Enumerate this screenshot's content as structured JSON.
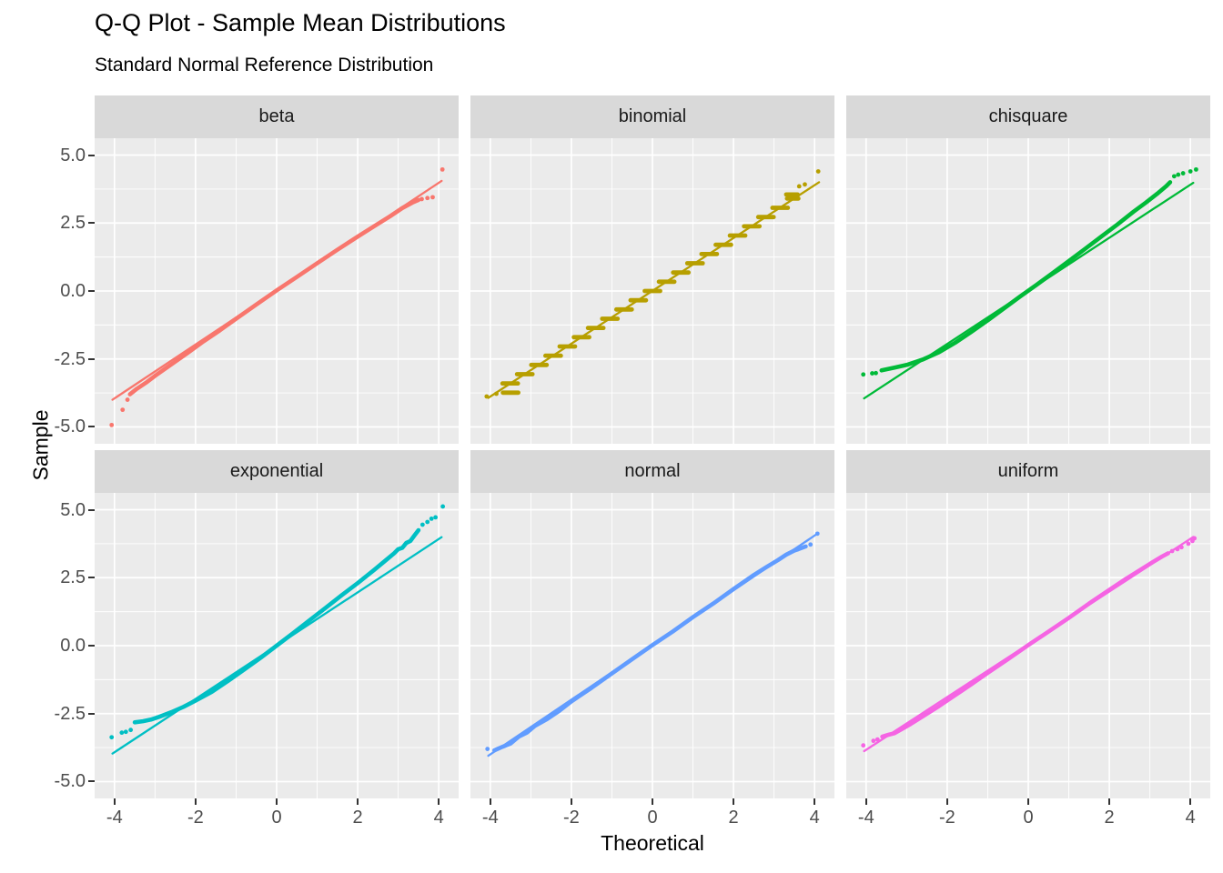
{
  "chart_data": {
    "type": "scatter",
    "title": "Q-Q Plot - Sample Mean Distributions",
    "subtitle": "Standard Normal Reference Distribution",
    "xlabel": "Theoretical",
    "ylabel": "Sample",
    "xlim": [
      -4.49,
      4.49
    ],
    "ylim": [
      -5.62,
      5.62
    ],
    "x_ticks": [
      -4,
      -2,
      0,
      2,
      4
    ],
    "x_tick_labels": [
      "-4",
      "-2",
      "0",
      "2",
      "4"
    ],
    "y_ticks": [
      5.0,
      2.5,
      0.0,
      -2.5,
      -5.0
    ],
    "y_tick_labels": [
      "5.0",
      "2.5",
      "0.0",
      "-2.5",
      "-5.0"
    ],
    "x_minor": [
      -3,
      -1,
      1,
      3
    ],
    "y_minor": [
      -3.75,
      -1.25,
      1.25,
      3.75
    ],
    "grid": true,
    "legend": "none",
    "colors": {
      "panel_bg": "#ebebeb",
      "strip_bg": "#d9d9d9",
      "grid": "#ffffff",
      "tick_text": "#4d4d4d",
      "tick_mark": "#333333"
    },
    "facets": [
      {
        "label": "beta",
        "color": "#F8766D",
        "line": [
          [
            -4.05,
            -4.0
          ],
          [
            4.07,
            4.05
          ]
        ],
        "band": [
          [
            -3.62,
            -3.8
          ],
          [
            -3.45,
            -3.6
          ],
          [
            -3.2,
            -3.35
          ],
          [
            -3.0,
            -3.12
          ],
          [
            -2.6,
            -2.7
          ],
          [
            -2.2,
            -2.28
          ],
          [
            -1.8,
            -1.85
          ],
          [
            -1.4,
            -1.45
          ],
          [
            -1.0,
            -1.02
          ],
          [
            -0.5,
            -0.5
          ],
          [
            0,
            0.02
          ],
          [
            0.5,
            0.52
          ],
          [
            1.0,
            1.02
          ],
          [
            1.5,
            1.52
          ],
          [
            2.0,
            2.0
          ],
          [
            2.4,
            2.38
          ],
          [
            2.8,
            2.75
          ],
          [
            3.1,
            3.05
          ],
          [
            3.35,
            3.25
          ],
          [
            3.5,
            3.35
          ]
        ],
        "steps": [],
        "dots": [
          [
            -4.07,
            -4.93
          ],
          [
            -3.8,
            -4.37
          ],
          [
            -3.68,
            -4.0
          ],
          [
            3.58,
            3.38
          ],
          [
            3.72,
            3.42
          ],
          [
            3.85,
            3.45
          ],
          [
            4.09,
            4.47
          ]
        ]
      },
      {
        "label": "binomial",
        "color": "#B79F00",
        "line": [
          [
            -4.05,
            -3.93
          ],
          [
            4.11,
            4.0
          ]
        ],
        "band": [],
        "steps": [
          [
            -3.74,
            -3.69,
            -3.31
          ],
          [
            -3.4,
            -3.7,
            -3.32
          ],
          [
            -3.06,
            -3.34,
            -2.96
          ],
          [
            -2.72,
            -2.99,
            -2.61
          ],
          [
            -2.38,
            -2.64,
            -2.26
          ],
          [
            -2.04,
            -2.29,
            -1.91
          ],
          [
            -1.7,
            -1.94,
            -1.56
          ],
          [
            -1.36,
            -1.59,
            -1.21
          ],
          [
            -1.02,
            -1.24,
            -0.86
          ],
          [
            -0.68,
            -0.89,
            -0.51
          ],
          [
            -0.34,
            -0.54,
            -0.16
          ],
          [
            0.0,
            -0.19,
            0.19
          ],
          [
            0.34,
            0.16,
            0.54
          ],
          [
            0.68,
            0.51,
            0.89
          ],
          [
            1.02,
            0.86,
            1.24
          ],
          [
            1.36,
            1.21,
            1.59
          ],
          [
            1.7,
            1.56,
            1.94
          ],
          [
            2.04,
            1.91,
            2.29
          ],
          [
            2.38,
            2.26,
            2.64
          ],
          [
            2.72,
            2.61,
            2.99
          ],
          [
            3.06,
            2.96,
            3.34
          ],
          [
            3.4,
            3.32,
            3.6
          ],
          [
            3.55,
            3.3,
            3.58
          ]
        ],
        "dots": [
          [
            -4.09,
            -3.88
          ],
          [
            -3.85,
            -3.78
          ],
          [
            3.62,
            3.85
          ],
          [
            3.76,
            3.92
          ],
          [
            4.09,
            4.4
          ]
        ]
      },
      {
        "label": "chisquare",
        "color": "#00BA38",
        "line": [
          [
            -4.05,
            -3.95
          ],
          [
            4.07,
            3.98
          ]
        ],
        "band": [
          [
            -3.62,
            -2.92
          ],
          [
            -3.3,
            -2.82
          ],
          [
            -3.0,
            -2.72
          ],
          [
            -2.6,
            -2.52
          ],
          [
            -2.2,
            -2.25
          ],
          [
            -1.8,
            -1.9
          ],
          [
            -1.4,
            -1.5
          ],
          [
            -1.0,
            -1.08
          ],
          [
            -0.6,
            -0.64
          ],
          [
            -0.2,
            -0.2
          ],
          [
            0.2,
            0.22
          ],
          [
            0.6,
            0.66
          ],
          [
            1.0,
            1.1
          ],
          [
            1.4,
            1.55
          ],
          [
            1.8,
            2.0
          ],
          [
            2.2,
            2.45
          ],
          [
            2.6,
            2.92
          ],
          [
            2.9,
            3.25
          ],
          [
            3.2,
            3.6
          ],
          [
            3.4,
            3.85
          ],
          [
            3.5,
            4.0
          ]
        ],
        "steps": [],
        "dots": [
          [
            -4.07,
            -3.07
          ],
          [
            -3.85,
            -3.03
          ],
          [
            -3.76,
            -3.02
          ],
          [
            3.6,
            4.22
          ],
          [
            3.7,
            4.28
          ],
          [
            3.82,
            4.33
          ],
          [
            4.0,
            4.4
          ],
          [
            4.14,
            4.47
          ]
        ]
      },
      {
        "label": "exponential",
        "color": "#00BFC4",
        "line": [
          [
            -4.05,
            -3.97
          ],
          [
            4.07,
            3.99
          ]
        ],
        "band": [
          [
            -3.5,
            -2.82
          ],
          [
            -3.3,
            -2.78
          ],
          [
            -3.1,
            -2.72
          ],
          [
            -2.9,
            -2.62
          ],
          [
            -2.6,
            -2.45
          ],
          [
            -2.3,
            -2.25
          ],
          [
            -2.0,
            -2.02
          ],
          [
            -1.6,
            -1.7
          ],
          [
            -1.2,
            -1.3
          ],
          [
            -0.8,
            -0.88
          ],
          [
            -0.4,
            -0.45
          ],
          [
            0,
            0
          ],
          [
            0.4,
            0.45
          ],
          [
            0.8,
            0.92
          ],
          [
            1.2,
            1.38
          ],
          [
            1.6,
            1.85
          ],
          [
            2.0,
            2.3
          ],
          [
            2.4,
            2.78
          ],
          [
            2.7,
            3.15
          ],
          [
            2.9,
            3.4
          ],
          [
            3.0,
            3.55
          ],
          [
            3.1,
            3.6
          ],
          [
            3.2,
            3.78
          ],
          [
            3.3,
            3.85
          ],
          [
            3.4,
            4.05
          ],
          [
            3.5,
            4.25
          ]
        ],
        "steps": [],
        "dots": [
          [
            -4.07,
            -3.37
          ],
          [
            -3.82,
            -3.2
          ],
          [
            -3.72,
            -3.17
          ],
          [
            -3.6,
            -3.1
          ],
          [
            3.6,
            4.45
          ],
          [
            3.72,
            4.55
          ],
          [
            3.82,
            4.67
          ],
          [
            3.92,
            4.72
          ],
          [
            4.1,
            5.12
          ]
        ]
      },
      {
        "label": "normal",
        "color": "#619CFF",
        "line": [
          [
            -4.05,
            -4.05
          ],
          [
            4.07,
            4.12
          ]
        ],
        "band": [
          [
            -3.9,
            -3.85
          ],
          [
            -3.7,
            -3.72
          ],
          [
            -3.5,
            -3.6
          ],
          [
            -3.3,
            -3.35
          ],
          [
            -3.1,
            -3.2
          ],
          [
            -2.9,
            -2.95
          ],
          [
            -2.6,
            -2.7
          ],
          [
            -2.3,
            -2.4
          ],
          [
            -2.0,
            -2.05
          ],
          [
            -1.5,
            -1.55
          ],
          [
            -1.0,
            -1.02
          ],
          [
            -0.5,
            -0.5
          ],
          [
            0,
            0.02
          ],
          [
            0.5,
            0.52
          ],
          [
            1.0,
            1.05
          ],
          [
            1.5,
            1.55
          ],
          [
            2.0,
            2.08
          ],
          [
            2.5,
            2.6
          ],
          [
            2.8,
            2.88
          ],
          [
            3.1,
            3.15
          ],
          [
            3.3,
            3.35
          ],
          [
            3.5,
            3.5
          ],
          [
            3.6,
            3.55
          ],
          [
            3.78,
            3.65
          ]
        ],
        "steps": [],
        "dots": [
          [
            -4.07,
            -3.8
          ],
          [
            3.9,
            3.72
          ],
          [
            4.07,
            4.12
          ]
        ]
      },
      {
        "label": "uniform",
        "color": "#F564E3",
        "line": [
          [
            -4.05,
            -3.88
          ],
          [
            4.07,
            4.0
          ]
        ],
        "band": [
          [
            -3.6,
            -3.35
          ],
          [
            -3.45,
            -3.28
          ],
          [
            -3.3,
            -3.22
          ],
          [
            -3.1,
            -3.05
          ],
          [
            -2.9,
            -2.88
          ],
          [
            -2.6,
            -2.6
          ],
          [
            -2.2,
            -2.22
          ],
          [
            -1.8,
            -1.82
          ],
          [
            -1.4,
            -1.42
          ],
          [
            -1.0,
            -1.0
          ],
          [
            -0.5,
            -0.5
          ],
          [
            0,
            0.02
          ],
          [
            0.5,
            0.52
          ],
          [
            1.0,
            1.02
          ],
          [
            1.5,
            1.55
          ],
          [
            2.0,
            2.05
          ],
          [
            2.4,
            2.45
          ],
          [
            2.8,
            2.82
          ],
          [
            3.1,
            3.1
          ],
          [
            3.3,
            3.28
          ],
          [
            3.45,
            3.4
          ]
        ],
        "steps": [],
        "dots": [
          [
            -4.07,
            -3.67
          ],
          [
            -3.82,
            -3.5
          ],
          [
            -3.72,
            -3.45
          ],
          [
            3.55,
            3.48
          ],
          [
            3.68,
            3.55
          ],
          [
            3.78,
            3.62
          ],
          [
            3.95,
            3.75
          ],
          [
            4.05,
            3.85
          ],
          [
            4.1,
            3.95
          ]
        ]
      }
    ]
  }
}
